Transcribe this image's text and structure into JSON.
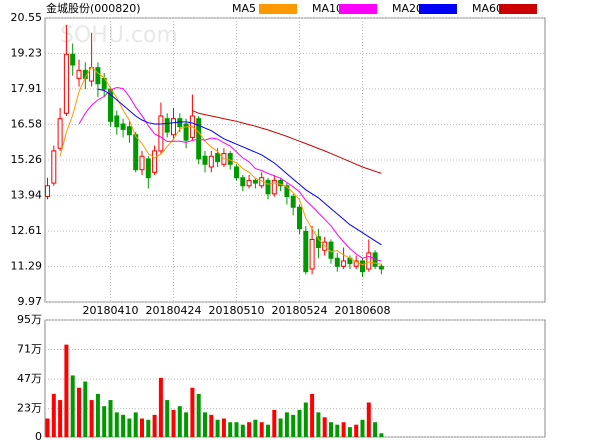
{
  "chart_data": [
    {
      "type": "candlestick",
      "title": "金城股份(000820)",
      "watermark": "SOHU.com",
      "categories": [
        null,
        null,
        null,
        null,
        null,
        null,
        null,
        null,
        null,
        null,
        "20180410",
        null,
        null,
        null,
        null,
        null,
        null,
        null,
        null,
        null,
        "20180424",
        null,
        null,
        null,
        null,
        null,
        null,
        null,
        null,
        null,
        "20180510",
        null,
        null,
        null,
        null,
        null,
        null,
        null,
        null,
        null,
        "20180524",
        null,
        null,
        null,
        null,
        null,
        null,
        null,
        null,
        null,
        "20180608",
        null,
        null,
        null
      ],
      "open": [
        13.9,
        14.4,
        15.7,
        17.0,
        19.2,
        18.3,
        18.6,
        18.2,
        18.7,
        18.3,
        17.9,
        16.9,
        16.6,
        16.5,
        16.2,
        14.9,
        15.3,
        14.8,
        15.6,
        16.8,
        16.2,
        16.8,
        16.6,
        16.1,
        16.8,
        15.4,
        15.0,
        15.5,
        15.1,
        15.5,
        15.0,
        14.6,
        14.3,
        14.5,
        14.3,
        14.5,
        14.0,
        14.5,
        14.3,
        13.9,
        13.5,
        12.6,
        11.2,
        12.4,
        11.9,
        12.2,
        11.6,
        11.3,
        11.6,
        11.3,
        11.5,
        11.2,
        11.8,
        11.3
      ],
      "high": [
        14.6,
        15.8,
        17.2,
        20.3,
        19.6,
        19.0,
        18.9,
        20.0,
        18.9,
        18.5,
        18.0,
        17.1,
        16.8,
        16.7,
        16.3,
        15.6,
        15.4,
        15.8,
        17.4,
        17.0,
        17.2,
        17.0,
        16.8,
        17.7,
        16.9,
        15.6,
        15.6,
        15.7,
        15.7,
        15.6,
        15.1,
        14.7,
        14.7,
        14.6,
        14.8,
        14.6,
        14.7,
        14.6,
        14.4,
        14.0,
        13.6,
        12.8,
        12.8,
        12.7,
        12.4,
        12.3,
        11.8,
        12.0,
        11.7,
        11.7,
        11.6,
        12.3,
        11.9,
        11.4
      ],
      "low": [
        13.8,
        14.3,
        15.6,
        16.9,
        18.4,
        18.0,
        17.9,
        18.0,
        17.6,
        17.6,
        16.5,
        16.2,
        16.1,
        15.9,
        14.8,
        14.7,
        14.2,
        14.7,
        15.5,
        16.1,
        16.0,
        16.3,
        15.7,
        16.0,
        15.1,
        14.8,
        14.8,
        15.0,
        15.0,
        14.9,
        14.5,
        14.1,
        14.2,
        14.2,
        14.2,
        13.8,
        13.9,
        14.1,
        13.6,
        13.2,
        12.5,
        11.0,
        11.0,
        11.6,
        11.7,
        11.4,
        11.1,
        11.2,
        11.2,
        11.2,
        10.9,
        11.1,
        11.2,
        11.0
      ],
      "close": [
        14.3,
        15.6,
        16.8,
        19.2,
        18.8,
        18.6,
        18.3,
        18.7,
        18.1,
        17.9,
        16.7,
        16.5,
        16.4,
        16.2,
        14.9,
        15.4,
        14.6,
        15.6,
        16.9,
        16.3,
        16.8,
        16.5,
        16.0,
        16.9,
        15.3,
        15.1,
        15.4,
        15.2,
        15.5,
        15.1,
        14.6,
        14.3,
        14.5,
        14.4,
        14.6,
        14.0,
        14.5,
        14.3,
        13.9,
        13.5,
        12.7,
        11.1,
        12.3,
        12.0,
        12.2,
        11.6,
        11.3,
        11.5,
        11.4,
        11.5,
        11.1,
        11.8,
        11.3,
        11.2
      ],
      "up_color": "#ff0000",
      "down_color": "#009900",
      "series": [
        {
          "name": "MA5",
          "color": "#ff9900",
          "values": [
            null,
            null,
            15.4,
            16.3,
            16.94,
            17.8,
            18.34,
            18.72,
            18.5,
            18.32,
            17.94,
            17.58,
            17.12,
            16.74,
            16.14,
            15.88,
            15.5,
            15.34,
            15.48,
            15.76,
            16.04,
            16.42,
            16.5,
            16.5,
            16.3,
            15.96,
            15.74,
            15.58,
            15.3,
            15.26,
            15.16,
            14.94,
            14.8,
            14.58,
            14.48,
            14.36,
            14.4,
            14.36,
            14.26,
            14.04,
            13.78,
            13.1,
            12.7,
            12.32,
            12.06,
            11.84,
            11.88,
            11.72,
            11.6,
            11.46,
            11.36,
            11.46,
            11.42,
            11.38
          ]
        },
        {
          "name": "MA10",
          "color": "#ff00ff",
          "values": [
            null,
            null,
            null,
            null,
            null,
            16.6,
            17.0,
            17.3,
            17.5,
            17.63,
            17.87,
            17.96,
            17.92,
            17.62,
            17.23,
            16.91,
            16.54,
            16.23,
            16.11,
            15.95,
            15.96,
            15.96,
            15.92,
            15.99,
            16.03,
            16.0,
            16.08,
            16.04,
            15.9,
            15.78,
            15.56,
            15.34,
            15.19,
            14.94,
            14.87,
            14.76,
            14.67,
            14.58,
            14.42,
            14.26,
            14.07,
            13.75,
            13.53,
            13.29,
            13.05,
            12.81,
            12.49,
            12.21,
            11.96,
            11.76,
            11.6,
            11.67,
            11.57,
            11.49
          ]
        },
        {
          "name": "MA20",
          "color": "#0000ff",
          "values": [
            null,
            null,
            null,
            null,
            null,
            null,
            null,
            null,
            17.9,
            17.85,
            17.7,
            17.5,
            17.3,
            17.1,
            16.9,
            16.75,
            16.65,
            16.6,
            16.6,
            16.62,
            16.65,
            16.68,
            16.68,
            16.64,
            16.55,
            16.45,
            16.35,
            16.2,
            16.05,
            15.95,
            15.85,
            15.75,
            15.65,
            15.55,
            15.45,
            15.3,
            15.15,
            14.95,
            14.75,
            14.55,
            14.35,
            14.15,
            14.0,
            13.85,
            13.65,
            13.45,
            13.25,
            13.05,
            12.85,
            12.7,
            12.55,
            12.4,
            12.25,
            12.1
          ]
        },
        {
          "name": "MA60",
          "color": "#cc0000",
          "values": [
            null,
            null,
            null,
            null,
            null,
            null,
            null,
            null,
            null,
            null,
            null,
            null,
            null,
            null,
            null,
            null,
            null,
            null,
            null,
            null,
            null,
            null,
            null,
            17.1,
            17.0,
            16.95,
            16.9,
            16.85,
            16.8,
            16.75,
            16.7,
            16.64,
            16.58,
            16.52,
            16.45,
            16.38,
            16.3,
            16.22,
            16.14,
            16.05,
            15.96,
            15.87,
            15.78,
            15.69,
            15.6,
            15.5,
            15.4,
            15.3,
            15.2,
            15.1,
            15.0,
            14.92,
            14.84,
            14.76
          ]
        }
      ],
      "ylim": [
        9.97,
        20.55
      ],
      "yticks": [
        9.97,
        11.29,
        12.61,
        13.94,
        15.26,
        16.58,
        17.91,
        19.23,
        20.55
      ],
      "grid": true
    },
    {
      "type": "bar",
      "values": [
        15,
        35,
        30,
        75,
        50,
        40,
        45,
        30,
        35,
        25,
        30,
        20,
        18,
        15,
        20,
        15,
        14,
        18,
        48,
        30,
        22,
        25,
        20,
        40,
        35,
        20,
        18,
        14,
        15,
        12,
        12,
        10,
        12,
        14,
        12,
        10,
        22,
        15,
        20,
        18,
        22,
        28,
        35,
        20,
        16,
        12,
        10,
        12,
        8,
        10,
        14,
        28,
        12,
        3
      ],
      "ylim": [
        0,
        95
      ],
      "yticks": [
        0,
        {
          "value": 23,
          "label": "23万"
        },
        {
          "value": 47,
          "label": "47万"
        },
        {
          "value": 71,
          "label": "71万"
        },
        {
          "value": 95,
          "label": "95万"
        }
      ],
      "grid": true
    }
  ]
}
